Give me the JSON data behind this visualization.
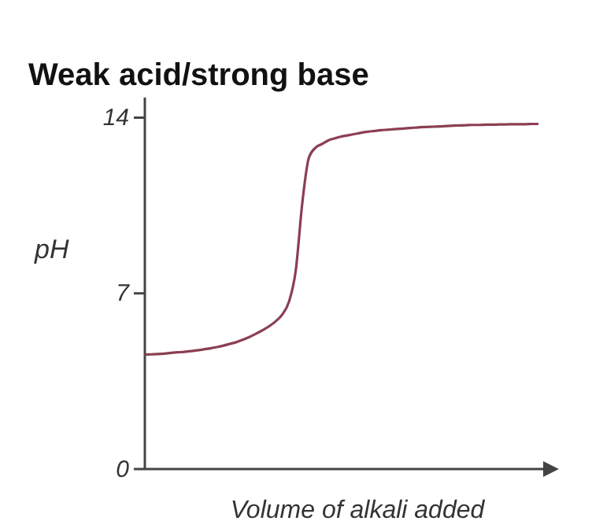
{
  "chart_data": {
    "type": "line",
    "title": "Weak acid/strong base",
    "xlabel": "Volume of alkali added",
    "ylabel": "pH",
    "categories": [
      null,
      null,
      null,
      null,
      null,
      null,
      null,
      null,
      null,
      null,
      null,
      null,
      null,
      null,
      null,
      null,
      null,
      null,
      null,
      null,
      null,
      null,
      null,
      null,
      null,
      null,
      null,
      null,
      null,
      null,
      null,
      null,
      null,
      null,
      null,
      null,
      null,
      null,
      null,
      null,
      null,
      null,
      null,
      null,
      null,
      null,
      null,
      null,
      null,
      null,
      null,
      null,
      null,
      null,
      null,
      null,
      null,
      null,
      null,
      null,
      null
    ],
    "series": [
      {
        "color": "#8c3f52",
        "values": [
          4.56,
          4.57,
          4.58,
          4.6,
          4.63,
          4.65,
          4.67,
          4.7,
          4.73,
          4.77,
          4.81,
          4.86,
          4.92,
          4.99,
          5.06,
          5.16,
          5.27,
          5.4,
          5.54,
          5.7,
          5.9,
          6.17,
          6.69,
          7.9,
          10.6,
          12.4,
          12.8,
          12.95,
          13.1,
          13.18,
          13.25,
          13.3,
          13.35,
          13.4,
          13.44,
          13.47,
          13.5,
          13.52,
          13.54,
          13.56,
          13.58,
          13.6,
          13.62,
          13.63,
          13.64,
          13.65,
          13.67,
          13.68,
          13.69,
          13.7,
          13.71,
          13.71,
          13.72,
          13.72,
          13.73,
          13.73,
          13.74,
          13.74,
          13.74,
          13.75,
          13.75
        ]
      }
    ],
    "ylim": [
      0,
      14.8
    ],
    "yticks": [
      0,
      7,
      14
    ],
    "tick_labels": "y",
    "grid": false,
    "marker": "none",
    "line_style": "solid"
  }
}
